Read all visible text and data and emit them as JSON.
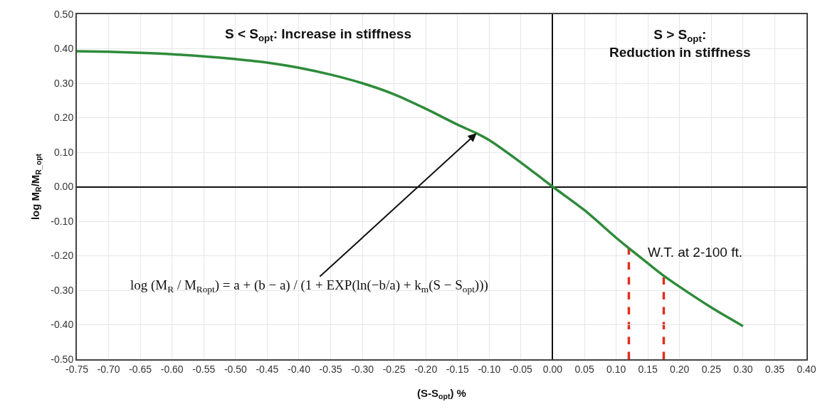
{
  "chart_data": {
    "type": "line",
    "xlabel": "(S-S$_{opt}$) %",
    "ylabel": "log M$_{R}$/M$_{R_opt}$",
    "x": [
      -0.75,
      -0.7,
      -0.65,
      -0.6,
      -0.55,
      -0.5,
      -0.45,
      -0.4,
      -0.35,
      -0.3,
      -0.25,
      -0.2,
      -0.15,
      -0.12,
      -0.1,
      -0.05,
      0.0,
      0.05,
      0.1,
      0.12,
      0.15,
      0.175,
      0.2,
      0.25,
      0.3
    ],
    "series": [
      {
        "color": "#2e8b3a",
        "values": [
          0.393,
          0.391,
          0.388,
          0.384,
          0.378,
          0.37,
          0.36,
          0.345,
          0.325,
          0.3,
          0.268,
          0.226,
          0.18,
          0.155,
          0.135,
          0.07,
          0.0,
          -0.068,
          -0.148,
          -0.178,
          -0.222,
          -0.258,
          -0.29,
          -0.35,
          -0.404
        ]
      }
    ],
    "xlim": [
      -0.75,
      0.4
    ],
    "xticks": [
      {
        "value": -0.75,
        "label": "-0.75"
      },
      {
        "value": -0.7,
        "label": "-0.70"
      },
      {
        "value": -0.65,
        "label": "-0.65"
      },
      {
        "value": -0.6,
        "label": "-0.60"
      },
      {
        "value": -0.55,
        "label": "-0.55"
      },
      {
        "value": -0.5,
        "label": "-0.50"
      },
      {
        "value": -0.45,
        "label": "-0.45"
      },
      {
        "value": -0.4,
        "label": "-0.40"
      },
      {
        "value": -0.35,
        "label": "-0.35"
      },
      {
        "value": -0.3,
        "label": "-0.30"
      },
      {
        "value": -0.25,
        "label": "-0.25"
      },
      {
        "value": -0.2,
        "label": "-0.20"
      },
      {
        "value": -0.15,
        "label": "-0.15"
      },
      {
        "value": -0.1,
        "label": "-0.10"
      },
      {
        "value": -0.05,
        "label": "-0.05"
      },
      {
        "value": 0,
        "label": "0.00"
      },
      {
        "value": 0.05,
        "label": "0.05"
      },
      {
        "value": 0.1,
        "label": "0.10"
      },
      {
        "value": 0.15,
        "label": "0.15"
      },
      {
        "value": 0.2,
        "label": "0.20"
      },
      {
        "value": 0.25,
        "label": "0.25"
      },
      {
        "value": 0.3,
        "label": "0.30"
      },
      {
        "value": 0.35,
        "label": "0.35"
      },
      {
        "value": 0.4,
        "label": "0.40"
      }
    ],
    "ylim": [
      -0.5,
      0.5
    ],
    "yticks": [
      {
        "value": -0.5,
        "label": "-0.50"
      },
      {
        "value": -0.4,
        "label": "-0.40"
      },
      {
        "value": -0.3,
        "label": "-0.30"
      },
      {
        "value": -0.2,
        "label": "-0.20"
      },
      {
        "value": -0.1,
        "label": "-0.10"
      },
      {
        "value": 0,
        "label": "0.00"
      },
      {
        "value": 0.1,
        "label": "0.10"
      },
      {
        "value": 0.2,
        "label": "0.20"
      },
      {
        "value": 0.3,
        "label": "0.30"
      },
      {
        "value": 0.4,
        "label": "0.40"
      },
      {
        "value": 0.5,
        "label": "0.50"
      }
    ],
    "grid": true,
    "marker": "none",
    "line_style": "solid",
    "ref_lines": [
      {
        "axis": "x",
        "value": 0.12,
        "color": "#e03020",
        "line_style": "dashed"
      },
      {
        "axis": "x",
        "value": 0.175,
        "color": "#e03020",
        "line_style": "dashed"
      }
    ],
    "annotations": [
      "S < S$_{opt}$: Increase in stiffness",
      "S > S$_{opt}$:\nReduction in stiffness",
      "log (M$_{R}$ / M$_{Ropt}$) = a + (b − a) / (1 + EXP(ln(−b/a) + k$_{m}$(S − S$_{opt}$)))",
      "W.T. at 2-100 ft."
    ]
  }
}
